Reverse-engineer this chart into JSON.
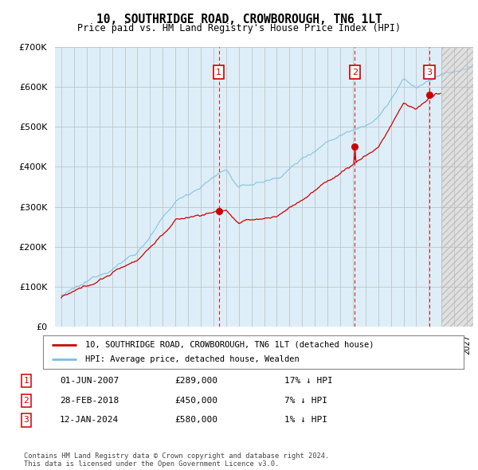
{
  "title": "10, SOUTHRIDGE ROAD, CROWBOROUGH, TN6 1LT",
  "subtitle": "Price paid vs. HM Land Registry's House Price Index (HPI)",
  "legend_line1": "10, SOUTHRIDGE ROAD, CROWBOROUGH, TN6 1LT (detached house)",
  "legend_line2": "HPI: Average price, detached house, Wealden",
  "transactions": [
    {
      "num": 1,
      "date": "01-JUN-2007",
      "price": 289000,
      "hpi_pct": "17%",
      "x_year": 2007.42
    },
    {
      "num": 2,
      "date": "28-FEB-2018",
      "price": 450000,
      "hpi_pct": "7%",
      "x_year": 2018.16
    },
    {
      "num": 3,
      "date": "12-JAN-2024",
      "price": 580000,
      "hpi_pct": "1%",
      "x_year": 2024.03
    }
  ],
  "footnote1": "Contains HM Land Registry data © Crown copyright and database right 2024.",
  "footnote2": "This data is licensed under the Open Government Licence v3.0.",
  "ylim": [
    0,
    700000
  ],
  "xlim_start": 1994.5,
  "xlim_end": 2027.5,
  "hpi_color": "#7bbfdd",
  "price_color": "#cc0000",
  "dashed_color": "#cc0000",
  "bg_chart": "#ddeef8",
  "grid_color": "#bbbbbb",
  "future_start": 2025.0,
  "yticks": [
    0,
    100000,
    200000,
    300000,
    400000,
    500000,
    600000,
    700000
  ],
  "ylabels": [
    "£0",
    "£100K",
    "£200K",
    "£300K",
    "£400K",
    "£500K",
    "£600K",
    "£700K"
  ]
}
